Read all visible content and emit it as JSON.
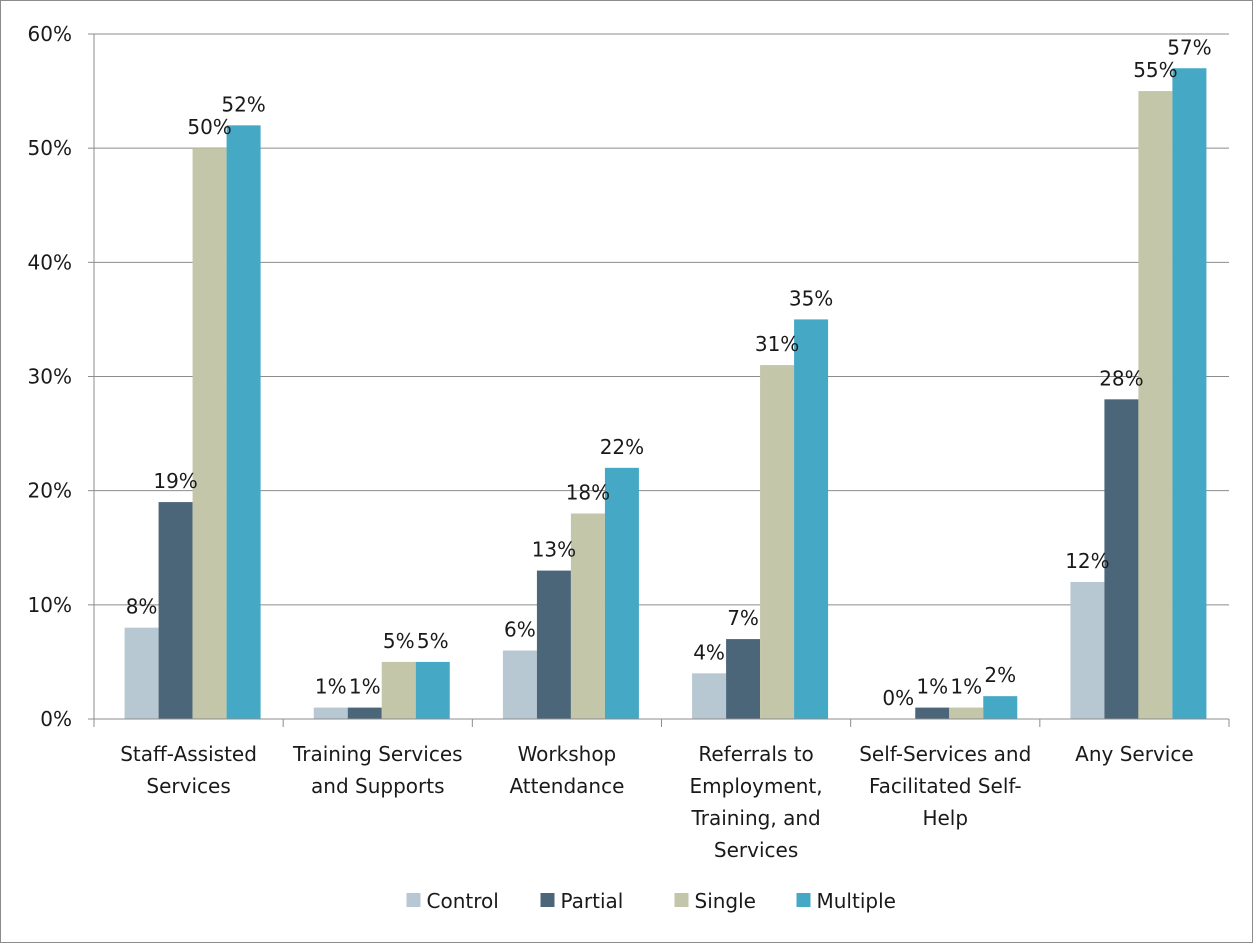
{
  "chart_data": {
    "type": "bar",
    "title": "",
    "xlabel": "",
    "ylabel": "",
    "ylim": [
      0,
      60
    ],
    "yticks": [
      "0%",
      "10%",
      "20%",
      "30%",
      "40%",
      "50%",
      "60%"
    ],
    "ytick_values": [
      0,
      10,
      20,
      30,
      40,
      50,
      60
    ],
    "grid": true,
    "legend_position": "bottom",
    "categories": [
      [
        "Staff-Assisted",
        "Services"
      ],
      [
        "Training Services",
        "and Supports"
      ],
      [
        "Workshop",
        "Attendance"
      ],
      [
        "Referrals to",
        "Employment,",
        "Training, and",
        "Services"
      ],
      [
        "Self-Services and",
        "Facilitated Self-",
        "Help"
      ],
      [
        "Any Service"
      ]
    ],
    "series": [
      {
        "name": "Control",
        "color": "#b8c8d3",
        "values": [
          8,
          1,
          6,
          4,
          0,
          12
        ],
        "labels": [
          "8%",
          "1%",
          "6%",
          "4%",
          "0%",
          "12%"
        ]
      },
      {
        "name": "Partial",
        "color": "#4c6679",
        "values": [
          19,
          1,
          13,
          7,
          1,
          28
        ],
        "labels": [
          "19%",
          "1%",
          "13%",
          "7%",
          "1%",
          "28%"
        ]
      },
      {
        "name": "Single",
        "color": "#c3c6a8",
        "values": [
          50,
          5,
          18,
          31,
          1,
          55
        ],
        "labels": [
          "50%",
          "5%",
          "18%",
          "31%",
          "1%",
          "55%"
        ]
      },
      {
        "name": "Multiple",
        "color": "#45a8c4",
        "values": [
          52,
          5,
          22,
          35,
          2,
          57
        ],
        "labels": [
          "52%",
          "5%",
          "22%",
          "35%",
          "2%",
          "57%"
        ]
      }
    ]
  }
}
